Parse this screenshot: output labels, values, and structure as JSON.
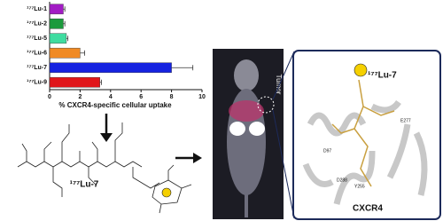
{
  "chart_data": {
    "type": "bar",
    "orientation": "horizontal",
    "categories": [
      "¹⁷⁷Lu-1",
      "¹⁷⁷Lu-2",
      "¹⁷⁷Lu-5",
      "¹⁷⁷Lu-6",
      "¹⁷⁷Lu-7",
      "¹⁷⁷Lu-9"
    ],
    "values": [
      0.9,
      0.9,
      1.1,
      2.0,
      8.0,
      3.3
    ],
    "errors": [
      0.1,
      0.1,
      0.1,
      0.3,
      1.4,
      0.1
    ],
    "colors": [
      "#a21cc4",
      "#1b9a3c",
      "#3fdca0",
      "#f08a24",
      "#1522e0",
      "#e0161a"
    ],
    "xlim": [
      0,
      10
    ],
    "xticks": [
      0,
      2,
      4,
      6,
      8,
      10
    ],
    "x_label": "% CXCR4-specific cellular uptake"
  },
  "molecule_label": "¹⁷⁷Lu-7",
  "mouse_label": "Tumor",
  "structure_panel": {
    "ligand_label": "¹⁷⁷Lu-7",
    "protein_label": "CXCR4",
    "residues": [
      "E277",
      "D97",
      "D288",
      "Y255"
    ]
  }
}
